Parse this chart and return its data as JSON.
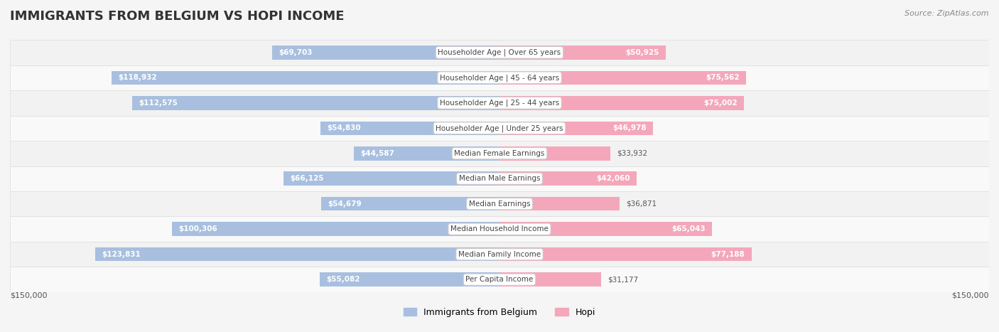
{
  "title": "IMMIGRANTS FROM BELGIUM VS HOPI INCOME",
  "source": "Source: ZipAtlas.com",
  "categories": [
    "Per Capita Income",
    "Median Family Income",
    "Median Household Income",
    "Median Earnings",
    "Median Male Earnings",
    "Median Female Earnings",
    "Householder Age | Under 25 years",
    "Householder Age | 25 - 44 years",
    "Householder Age | 45 - 64 years",
    "Householder Age | Over 65 years"
  ],
  "belgium_values": [
    55082,
    123831,
    100306,
    54679,
    66125,
    44587,
    54830,
    112575,
    118932,
    69703
  ],
  "hopi_values": [
    31177,
    77188,
    65043,
    36871,
    42060,
    33932,
    46978,
    75002,
    75562,
    50925
  ],
  "belgium_labels": [
    "$55,082",
    "$123,831",
    "$100,306",
    "$54,679",
    "$66,125",
    "$44,587",
    "$54,830",
    "$112,575",
    "$118,932",
    "$69,703"
  ],
  "hopi_labels": [
    "$31,177",
    "$77,188",
    "$65,043",
    "$36,871",
    "$42,060",
    "$33,932",
    "$46,978",
    "$75,002",
    "$75,562",
    "$50,925"
  ],
  "belgium_color": "#a8bfdf",
  "belgium_color_dark": "#6b8fc2",
  "hopi_color": "#f4a7bb",
  "hopi_color_dark": "#e8759a",
  "max_value": 150000,
  "bar_height": 0.55,
  "bg_color": "#f5f5f5",
  "row_bg_light": "#ffffff",
  "row_bg_mid": "#f0f0f0",
  "legend_belgium": "Immigrants from Belgium",
  "legend_hopi": "Hopi",
  "xlabel_left": "$150,000",
  "xlabel_right": "$150,000"
}
